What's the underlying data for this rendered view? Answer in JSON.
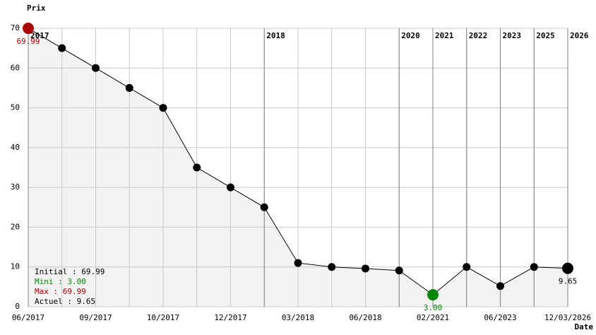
{
  "chart_data": {
    "type": "line",
    "y_label": "Prix",
    "x_label": "Date",
    "categories": [
      "06/2017",
      null,
      "09/2017",
      null,
      "10/2017",
      null,
      "12/2017",
      null,
      "03/2018",
      null,
      "06/2018",
      null,
      "02/2021",
      null,
      "06/2023",
      null,
      "12/03/2026"
    ],
    "year_labels": [
      "2017",
      null,
      null,
      null,
      null,
      null,
      null,
      "2018",
      null,
      null,
      null,
      "2020",
      "2021",
      "2022",
      "2023",
      "2025",
      "2026"
    ],
    "series": [
      {
        "name": "Prix",
        "color": "#000000",
        "values": [
          69.99,
          65,
          60,
          55,
          50,
          35,
          30,
          25,
          11,
          10,
          9.6,
          9.1,
          3.0,
          10,
          5.2,
          10,
          9.65
        ],
        "value_labels": [
          "69.99",
          null,
          null,
          null,
          null,
          null,
          null,
          null,
          null,
          null,
          null,
          null,
          "3.00",
          null,
          null,
          null,
          "9.65"
        ],
        "point_colors": [
          "#aa0000",
          "#000000",
          "#000000",
          "#000000",
          "#000000",
          "#000000",
          "#000000",
          "#000000",
          "#000000",
          "#000000",
          "#000000",
          "#000000",
          "#008800",
          "#000000",
          "#000000",
          "#000000",
          "#000000"
        ]
      }
    ],
    "ylim": [
      0,
      70
    ],
    "yticks": [
      0,
      10,
      20,
      30,
      40,
      50,
      60,
      70
    ],
    "grid": true,
    "fill_color": "#f3f3f3",
    "summary": [
      {
        "text": "Initial : 69.99",
        "color": "#000000"
      },
      {
        "text": "Mini : 3.00",
        "color": "#008800"
      },
      {
        "text": "Max : 69.99",
        "color": "#aa0000"
      },
      {
        "text": "Actuel : 9.65",
        "color": "#000000"
      }
    ]
  }
}
